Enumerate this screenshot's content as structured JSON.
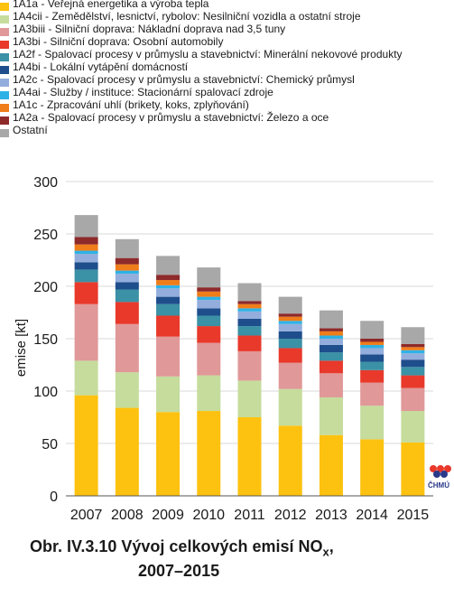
{
  "chart_data": {
    "type": "bar",
    "stacked": true,
    "categories": [
      "2007",
      "2008",
      "2009",
      "2010",
      "2011",
      "2012",
      "2013",
      "2014",
      "2015"
    ],
    "ylabel": "emise [kt]",
    "ylim": [
      0,
      300
    ],
    "yticks": [
      0,
      50,
      100,
      150,
      200,
      250,
      300
    ],
    "grid": true,
    "legend_position": "top",
    "series": [
      {
        "name": "1A1a - Veřejná energetika a výroba tepla",
        "color": "#fdc20f",
        "values": [
          96,
          84,
          80,
          81,
          75,
          67,
          58,
          54,
          51
        ]
      },
      {
        "name": "1A4cii - Zemědělství, lesnictví, rybolov: Nesilniční vozidla a ostatní stroje",
        "color": "#c5dc9c",
        "values": [
          33,
          34,
          34,
          34,
          35,
          35,
          36,
          32,
          30
        ]
      },
      {
        "name": "1A3biii - Silniční doprava: Nákladní doprava nad 3,5 tuny",
        "color": "#e09898",
        "values": [
          54,
          46,
          38,
          31,
          28,
          25,
          23,
          22,
          22
        ]
      },
      {
        "name": "1A3bi - Silniční doprava: Osobní automobily",
        "color": "#e8392b",
        "values": [
          21,
          21,
          20,
          16,
          15,
          14,
          12,
          12,
          12
        ]
      },
      {
        "name": "1A2f - Spalovací procesy v průmyslu a stavebnictví: Minerální nekovové produkty",
        "color": "#3b91a5",
        "values": [
          12,
          12,
          11,
          10,
          9,
          9,
          8,
          8,
          8
        ]
      },
      {
        "name": "1A4bi - Lokální vytápění domácností",
        "color": "#1f4e8c",
        "values": [
          7,
          7,
          7,
          7,
          7,
          7,
          7,
          7,
          7
        ]
      },
      {
        "name": "1A2c - Spalovací procesy v průmyslu a stavebnictví: Chemický průmysl",
        "color": "#93aedc",
        "values": [
          8,
          8,
          8,
          8,
          7,
          7,
          6,
          6,
          6
        ]
      },
      {
        "name": "1A4ai - Služby / instituce: Stacionární spalovací zdroje",
        "color": "#2eb2e6",
        "values": [
          3,
          3,
          3,
          3,
          3,
          3,
          3,
          3,
          3
        ]
      },
      {
        "name": "1A1c - Zpracování uhlí (brikety, koks, zplyňování)",
        "color": "#ef7d1a",
        "values": [
          6,
          6,
          5,
          5,
          4,
          4,
          4,
          3,
          3
        ]
      },
      {
        "name": "1A2a - Spalovací procesy v průmyslu a stavebnictví: Železo a oce",
        "color": "#8e2a2a",
        "values": [
          7,
          6,
          5,
          4,
          3,
          3,
          3,
          3,
          3
        ]
      },
      {
        "name": "Ostatní",
        "color": "#a8a8a8",
        "values": [
          21,
          18,
          18,
          19,
          17,
          16,
          17,
          17,
          16
        ]
      }
    ]
  },
  "caption": {
    "line1": "Obr. IV.3.10  Vývoj celkových emisí NO",
    "subscript": "x",
    "line1_end": ",",
    "line2": "2007–2015"
  },
  "logo": {
    "text": "ČHMÚ",
    "colors": [
      "#e8392b",
      "#2a3a8a"
    ]
  }
}
